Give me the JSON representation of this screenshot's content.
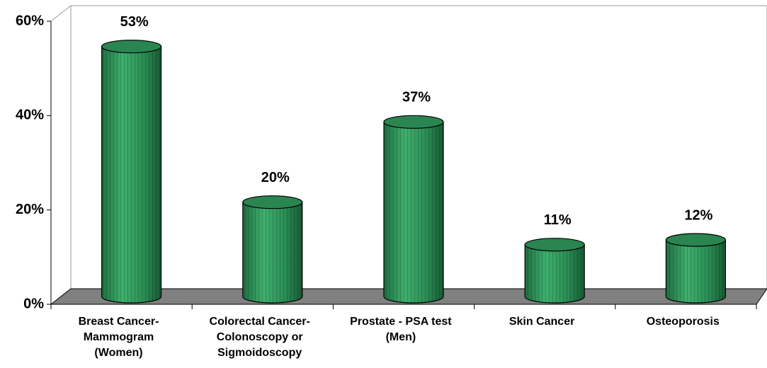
{
  "chart_data": {
    "type": "bar",
    "categories": [
      "Breast Cancer-\nMammogram\n(Women)",
      "Colorectal Cancer-\nColonoscopy or\nSigmoidoscopy",
      "Prostate - PSA test\n(Men)",
      "Skin Cancer",
      "Osteoporosis"
    ],
    "values": [
      53,
      20,
      37,
      11,
      12
    ],
    "value_labels": [
      "53%",
      "20%",
      "37%",
      "11%",
      "12%"
    ],
    "color": "#2e9a5c",
    "ylim": [
      0,
      60
    ],
    "yticks": [
      {
        "value": 0,
        "label": "0%"
      },
      {
        "value": 20,
        "label": "20%"
      },
      {
        "value": 40,
        "label": "40%"
      },
      {
        "value": 60,
        "label": "60%"
      }
    ]
  }
}
